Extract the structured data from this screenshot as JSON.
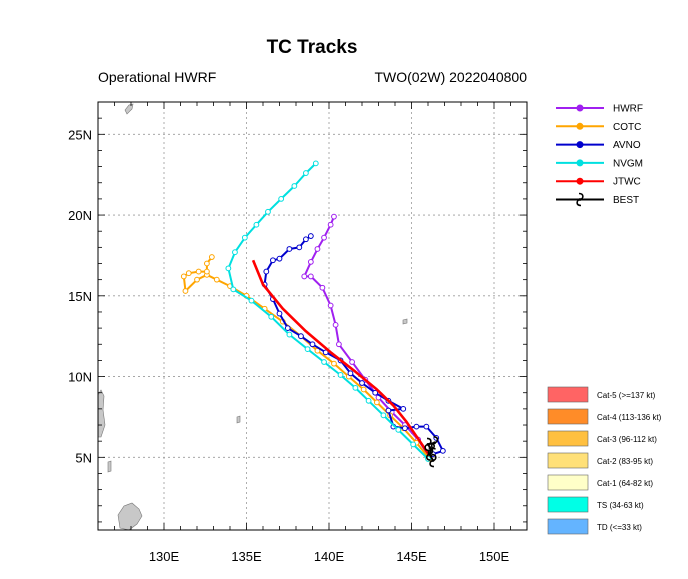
{
  "chart_data": {
    "type": "line",
    "title": "TC Tracks",
    "subtitle_left": "Operational HWRF",
    "subtitle_right": "TWO(02W) 2022040800",
    "xlabel": "",
    "ylabel": "",
    "xlim": [
      126,
      152
    ],
    "ylim": [
      0.5,
      27
    ],
    "x_ticks": [
      130,
      135,
      140,
      145,
      150
    ],
    "x_tick_labels": [
      "130E",
      "135E",
      "140E",
      "145E",
      "150E"
    ],
    "y_ticks": [
      5,
      10,
      15,
      20,
      25
    ],
    "y_tick_labels": [
      "5N",
      "10N",
      "15N",
      "20N",
      "25N"
    ],
    "grid": true,
    "legend_position": "right",
    "series": [
      {
        "name": "HWRF",
        "color": "#a020f0",
        "marker": "open-circle",
        "x": [
          146.1,
          145.4,
          144.6,
          143.8,
          143.0,
          142.2,
          141.4,
          140.6,
          140.4,
          140.1,
          139.6,
          138.9,
          138.5,
          138.9,
          139.3,
          139.7,
          140.1,
          140.3
        ],
        "y": [
          5.0,
          6.1,
          7.0,
          7.8,
          8.7,
          9.8,
          10.9,
          12.0,
          13.2,
          14.4,
          15.5,
          16.2,
          16.2,
          17.1,
          17.9,
          18.6,
          19.4,
          19.9
        ]
      },
      {
        "name": "COTC",
        "color": "#ffa500",
        "marker": "open-circle",
        "x": [
          146.1,
          145.3,
          144.5,
          143.7,
          142.9,
          142.1,
          141.2,
          140.3,
          139.3,
          138.3,
          137.2,
          136.1,
          135.0,
          134.0,
          133.2,
          132.6,
          132.0,
          131.3,
          131.2,
          131.5,
          132.1,
          132.6,
          132.6,
          132.9
        ],
        "y": [
          4.9,
          5.9,
          6.8,
          7.6,
          8.4,
          9.2,
          10.0,
          10.8,
          11.6,
          12.5,
          13.4,
          14.2,
          15.0,
          15.6,
          16.0,
          16.3,
          16.0,
          15.3,
          16.2,
          16.4,
          16.5,
          16.5,
          17.0,
          17.4
        ]
      },
      {
        "name": "AVNO",
        "color": "#0000cd",
        "marker": "open-circle",
        "x": [
          146.3,
          146.9,
          146.5,
          145.9,
          145.3,
          144.6,
          143.9,
          143.6,
          144.5,
          143.6,
          142.8,
          142.0,
          141.3,
          140.7,
          139.8,
          139.0,
          138.3,
          137.5,
          137.0,
          136.6,
          136.1,
          136.2,
          136.6,
          137.0,
          137.6,
          138.2,
          138.6,
          138.9
        ],
        "y": [
          5.2,
          5.4,
          6.2,
          6.9,
          6.9,
          6.8,
          6.9,
          7.9,
          8.0,
          8.5,
          9.0,
          9.6,
          10.2,
          11.0,
          11.5,
          12.0,
          12.5,
          13.0,
          13.9,
          14.8,
          15.7,
          16.5,
          17.2,
          17.3,
          17.9,
          18.0,
          18.5,
          18.7
        ]
      },
      {
        "name": "NVGM",
        "color": "#00e0e0",
        "marker": "open-circle",
        "x": [
          146.0,
          145.1,
          144.2,
          143.3,
          142.4,
          141.6,
          140.7,
          139.7,
          138.7,
          137.6,
          136.5,
          135.3,
          134.2,
          133.9,
          134.3,
          134.9,
          135.6,
          136.3,
          137.1,
          137.9,
          138.6,
          139.2
        ],
        "y": [
          4.9,
          5.8,
          6.7,
          7.6,
          8.5,
          9.3,
          10.1,
          10.9,
          11.7,
          12.6,
          13.7,
          14.7,
          15.4,
          16.7,
          17.7,
          18.6,
          19.4,
          20.2,
          21.0,
          21.8,
          22.6,
          23.2
        ]
      },
      {
        "name": "JTWC",
        "color": "#ff0000",
        "marker": "none",
        "x": [
          146.1,
          145.5,
          144.7,
          143.9,
          142.9,
          141.6,
          140.1,
          138.6,
          137.2,
          136.0,
          135.4
        ],
        "y": [
          5.1,
          6.0,
          7.2,
          8.2,
          9.2,
          10.3,
          11.5,
          12.8,
          14.2,
          15.7,
          17.2
        ]
      },
      {
        "name": "BEST",
        "color": "#000000",
        "marker": "hurricane",
        "x": [
          146.3,
          146.1,
          146.2,
          146.0,
          146.4
        ],
        "y": [
          4.8,
          5.2,
          5.5,
          5.8,
          5.9
        ]
      }
    ],
    "category_legend": [
      {
        "label": "Cat-5 (>=137 kt)",
        "color": "#ff6464"
      },
      {
        "label": "Cat-4 (113-136 kt)",
        "color": "#ff8c28"
      },
      {
        "label": "Cat-3 (96-112 kt)",
        "color": "#ffc040"
      },
      {
        "label": "Cat-2 (83-95 kt)",
        "color": "#ffe078"
      },
      {
        "label": "Cat-1 (64-82 kt)",
        "color": "#ffffc8"
      },
      {
        "label": "TS (34-63 kt)",
        "color": "#00ffe6"
      },
      {
        "label": "TD (<=33 kt)",
        "color": "#64b4ff"
      }
    ],
    "land_color": "#c8c8c8"
  }
}
